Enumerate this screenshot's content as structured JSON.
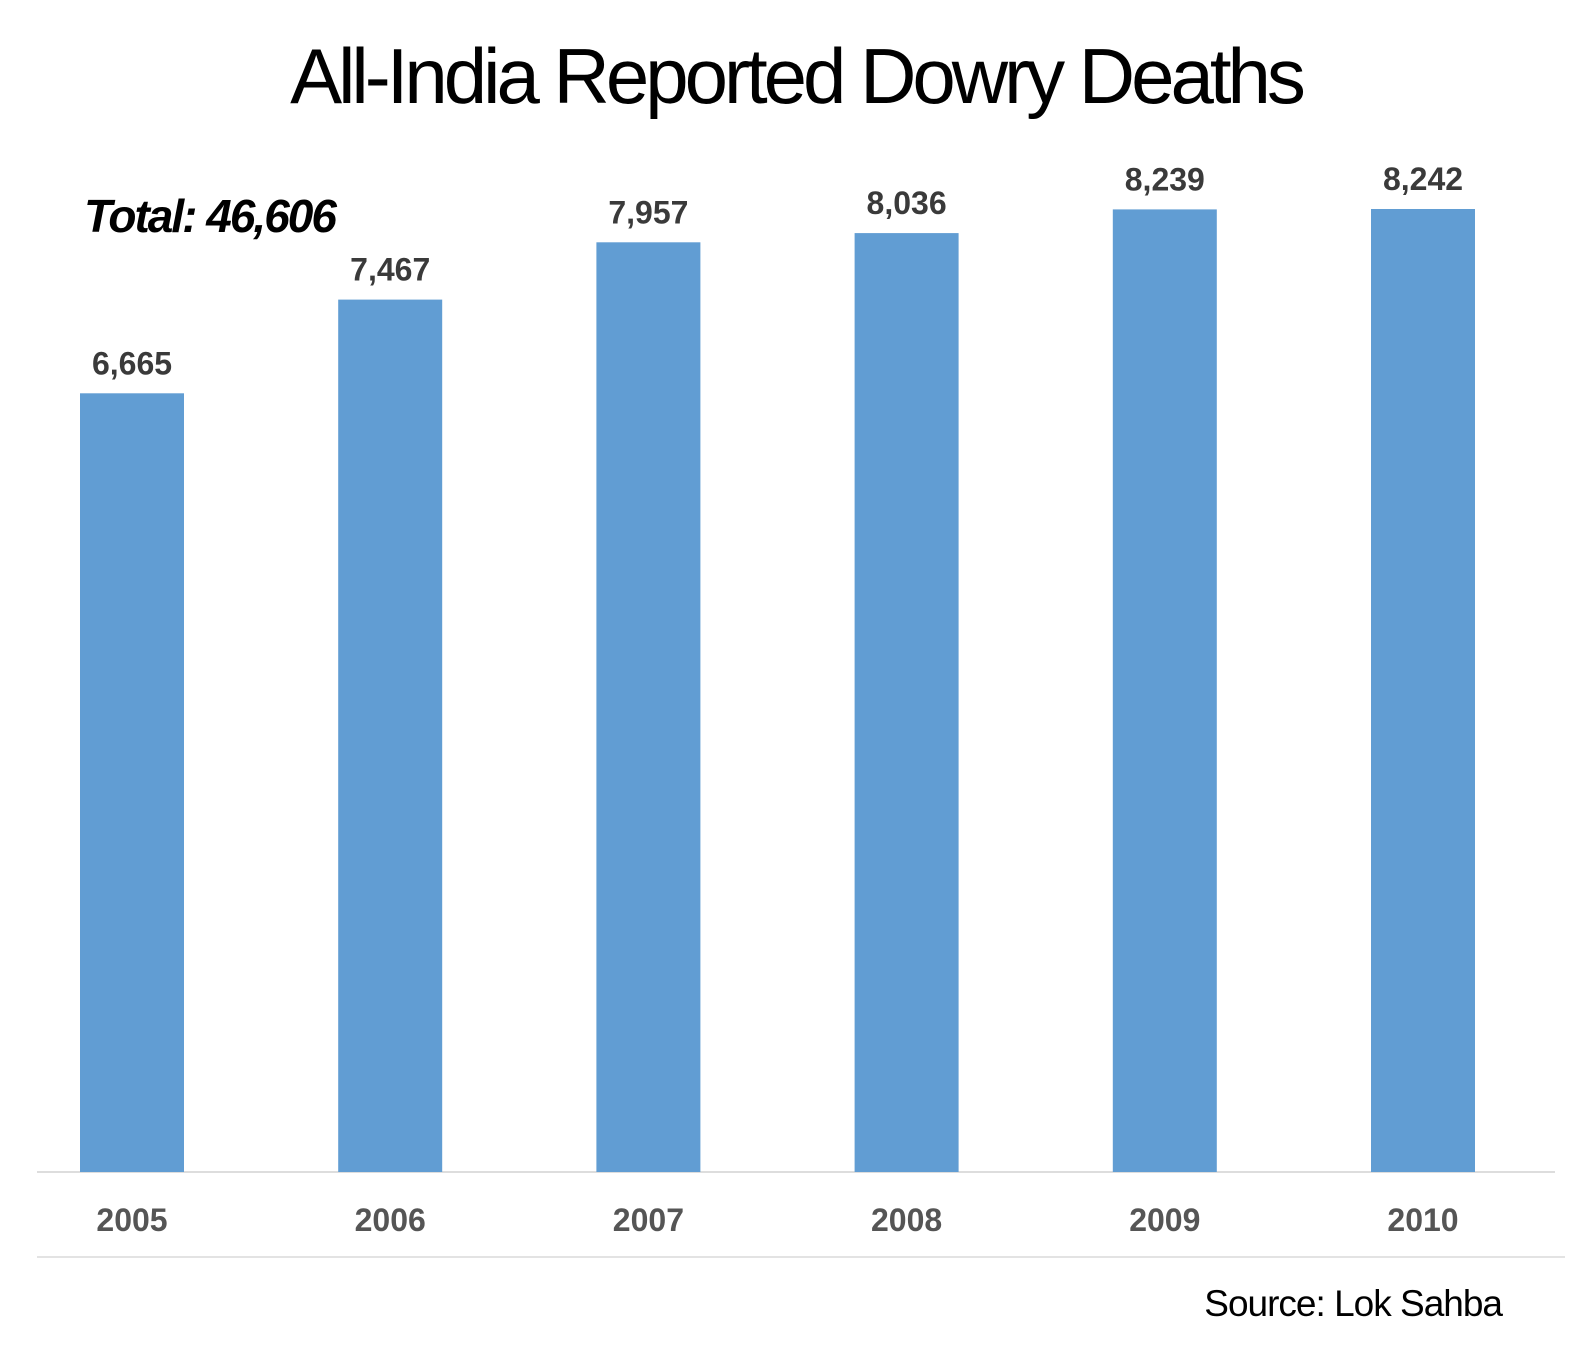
{
  "chart_data": {
    "type": "bar",
    "title": "All-India Reported Dowry Deaths",
    "annotation": "Total: 46,606",
    "categories": [
      "2005",
      "2006",
      "2007",
      "2008",
      "2009",
      "2010"
    ],
    "values": [
      6665,
      7467,
      7957,
      8036,
      8239,
      8242
    ],
    "value_labels": [
      "6,665",
      "7,467",
      "7,957",
      "8,036",
      "8,239",
      "8,242"
    ],
    "xlabel": "",
    "ylabel": "",
    "ylim": [
      0,
      8242
    ],
    "grid": false,
    "legend": "none",
    "source": "Source: Lok Sahba",
    "bar_color": "#619dd3"
  }
}
